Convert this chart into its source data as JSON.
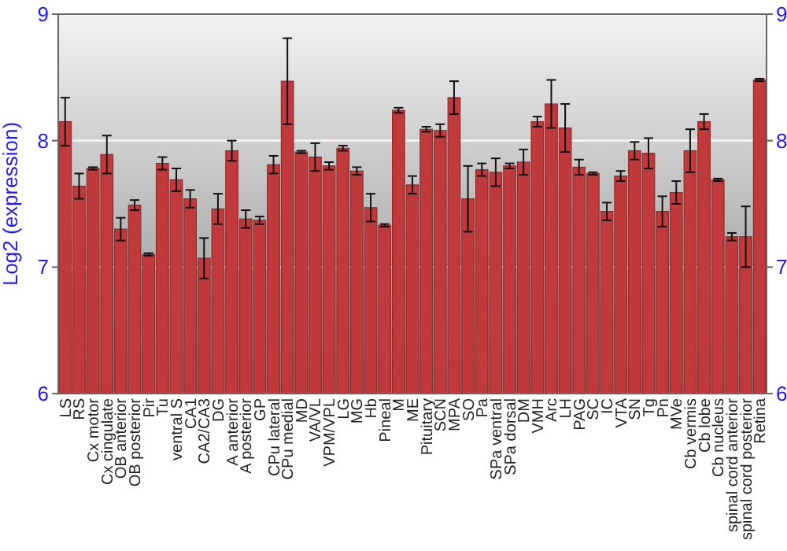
{
  "chart_data": {
    "type": "bar",
    "ylabel": "Log2 (expression)",
    "categories": [
      "LS",
      "RS",
      "Cx motor",
      "Cx cingulate",
      "OB anterior",
      "OB posterior",
      "Pir",
      "Tu",
      "ventral S",
      "CA1",
      "CA2/CA3",
      "DG",
      "A anterior",
      "A posterior",
      "GP",
      "CPu lateral",
      "CPu medial",
      "MD",
      "VA/VL",
      "VPM/VPL",
      "LG",
      "MG",
      "Hb",
      "Pineal",
      "M",
      "ME",
      "Pituitary",
      "SCN",
      "MPA",
      "SO",
      "Pa",
      "SPa ventral",
      "SPa dorsal",
      "DM",
      "VMH",
      "Arc",
      "LH",
      "PAG",
      "SC",
      "IC",
      "VTA",
      "SN",
      "Tg",
      "Pn",
      "MVe",
      "Cb vermis",
      "Cb lobe",
      "Cb nucleus",
      "spinal cord anterior",
      "spinal cord posterior",
      "Retina"
    ],
    "values": [
      8.15,
      7.64,
      7.78,
      7.89,
      7.3,
      7.49,
      7.1,
      7.82,
      7.69,
      7.54,
      7.07,
      7.46,
      7.92,
      7.38,
      7.37,
      7.81,
      8.47,
      7.91,
      7.87,
      7.8,
      7.94,
      7.76,
      7.47,
      7.33,
      8.24,
      7.65,
      8.09,
      8.08,
      8.34,
      7.54,
      7.77,
      7.75,
      7.8,
      7.83,
      8.15,
      8.29,
      8.1,
      7.79,
      7.74,
      7.44,
      7.72,
      7.92,
      7.9,
      7.44,
      7.59,
      7.92,
      8.15,
      7.69,
      7.24,
      7.24,
      8.48
    ],
    "errors": [
      0.19,
      0.1,
      0.01,
      0.15,
      0.09,
      0.04,
      0.01,
      0.05,
      0.09,
      0.07,
      0.16,
      0.12,
      0.08,
      0.07,
      0.03,
      0.07,
      0.34,
      0.01,
      0.11,
      0.03,
      0.02,
      0.03,
      0.11,
      0.01,
      0.02,
      0.07,
      0.02,
      0.05,
      0.13,
      0.26,
      0.05,
      0.11,
      0.02,
      0.1,
      0.04,
      0.19,
      0.19,
      0.06,
      0.01,
      0.07,
      0.04,
      0.07,
      0.12,
      0.12,
      0.09,
      0.17,
      0.06,
      0.01,
      0.03,
      0.24,
      0.01
    ],
    "color": "#c0393b",
    "ylim": [
      6,
      9
    ],
    "yticks": [
      6,
      7,
      8,
      9
    ],
    "y2lim": [
      6,
      9
    ],
    "y2ticks": [
      6,
      7,
      8,
      9
    ],
    "grid": "y"
  }
}
